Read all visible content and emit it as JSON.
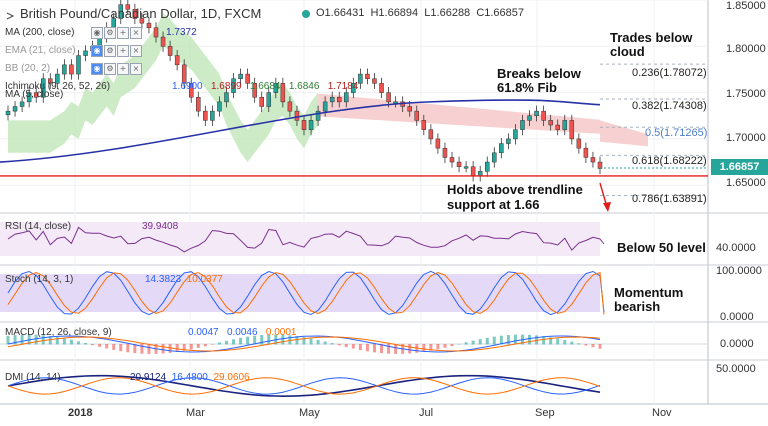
{
  "header": {
    "symbol": "British Pound/Canadian Dollar, 1D, FXCM",
    "ohlc": {
      "o": "O1.66431",
      "h": "H1.66894",
      "l": "L1.66288",
      "c": "C1.66857"
    }
  },
  "indicators": {
    "ma200": {
      "label": "MA (200, close)",
      "value": "1.7372"
    },
    "ema21": {
      "label": "EMA (21, close)"
    },
    "bb": {
      "label": "BB (20, 2)"
    },
    "ichimoku": {
      "label": "Ichimoku (9, 26, 52, 26)",
      "values": [
        "1.6900",
        "1.6899",
        "1.6684",
        "1.6846",
        "1.7184"
      ]
    },
    "ma5": {
      "label": "MA (5, close)"
    },
    "rsi": {
      "label": "RSI (14, close)",
      "value": "39.9408"
    },
    "stoch": {
      "label": "Stoch (14, 3, 1)",
      "values": [
        "14.3823",
        "10.0377"
      ]
    },
    "macd": {
      "label": "MACD (12, 26, close, 9)",
      "values": [
        "0.0047",
        "0.0046",
        "0.0001"
      ]
    },
    "dmi": {
      "label": "DMI (14, 14)",
      "values": [
        "20.9124",
        "16.4800",
        "29.0606"
      ]
    }
  },
  "annotations": {
    "trades_below_cloud": "Trades below\ncloud",
    "breaks_below": "Breaks below\n61.8% Fib",
    "holds_above": "Holds above trendline\nsupport at 1.66",
    "below_50": "Below 50 level",
    "momentum": "Momentum\nbearish"
  },
  "fib_levels": [
    {
      "label": "0.236(1.78072)",
      "value": 1.78072
    },
    {
      "label": "0.382(1.74308)",
      "value": 1.74308
    },
    {
      "label": "0.5(1.71265)",
      "value": 1.71265
    },
    {
      "label": "0.618(1.68222)",
      "value": 1.68222
    },
    {
      "label": "0.786(1.63891)",
      "value": 1.63891
    }
  ],
  "price_axis": {
    "ticks": [
      "1.85000",
      "1.80000",
      "1.75000",
      "1.70000",
      "1.65000"
    ],
    "current": "1.66857"
  },
  "rsi_axis": {
    "ticks": [
      "40.0000"
    ]
  },
  "stoch_axis": {
    "ticks": [
      "100.0000",
      "0.0000"
    ]
  },
  "macd_axis": {
    "ticks": [
      "0.0000"
    ]
  },
  "dmi_axis": {
    "ticks": [
      "50.0000"
    ]
  },
  "time_axis": {
    "labels": [
      "2018",
      "Mar",
      "May",
      "Jul",
      "Sep",
      "Nov"
    ]
  },
  "colors": {
    "candle_up": "#26a69a",
    "candle_down": "#ef5350",
    "ma200": "#2832a8",
    "trendline": "#e31b1b",
    "cloud_green": "#bfe6b8",
    "cloud_red": "#f6c9c9",
    "rsi": "#7b2f8e",
    "stoch_k": "#2962ff",
    "stoch_d": "#ff6d00",
    "macd": "#2962ff",
    "signal": "#ff6d00",
    "dmi_plus": "#2962ff",
    "dmi_minus": "#ff6d00",
    "adx": "#1a237e",
    "current_price_bg": "#26a69a"
  },
  "chart_data": {
    "type": "candlestick",
    "x_label_months": [
      "2018",
      "Mar",
      "May",
      "Jul",
      "Sep",
      "Nov"
    ],
    "price_ylim": [
      1.62,
      1.85
    ],
    "close_path": [
      1.73,
      1.735,
      1.74,
      1.75,
      1.745,
      1.765,
      1.76,
      1.77,
      1.78,
      1.77,
      1.79,
      1.795,
      1.8,
      1.81,
      1.82,
      1.83,
      1.845,
      1.84,
      1.83,
      1.825,
      1.82,
      1.81,
      1.8,
      1.79,
      1.78,
      1.76,
      1.745,
      1.73,
      1.72,
      1.73,
      1.74,
      1.75,
      1.765,
      1.77,
      1.76,
      1.745,
      1.735,
      1.75,
      1.76,
      1.74,
      1.73,
      1.72,
      1.71,
      1.72,
      1.73,
      1.74,
      1.745,
      1.74,
      1.75,
      1.76,
      1.77,
      1.765,
      1.76,
      1.75,
      1.74,
      1.74,
      1.735,
      1.73,
      1.72,
      1.71,
      1.7,
      1.69,
      1.68,
      1.675,
      1.67,
      1.67,
      1.66,
      1.665,
      1.675,
      1.685,
      1.695,
      1.7,
      1.71,
      1.72,
      1.725,
      1.73,
      1.72,
      1.715,
      1.71,
      1.72,
      1.7,
      1.69,
      1.68,
      1.675,
      1.668
    ],
    "ma200": {
      "start": 1.675,
      "mid": 1.735,
      "end": 1.737
    },
    "trendline_level": 1.66,
    "current": 1.66857,
    "rsi_last": 39.9408,
    "stoch": [
      14.3823,
      10.0377
    ],
    "macd": [
      0.0047,
      0.0046,
      0.0001
    ],
    "dmi": [
      20.9124,
      16.48,
      29.0606
    ]
  }
}
